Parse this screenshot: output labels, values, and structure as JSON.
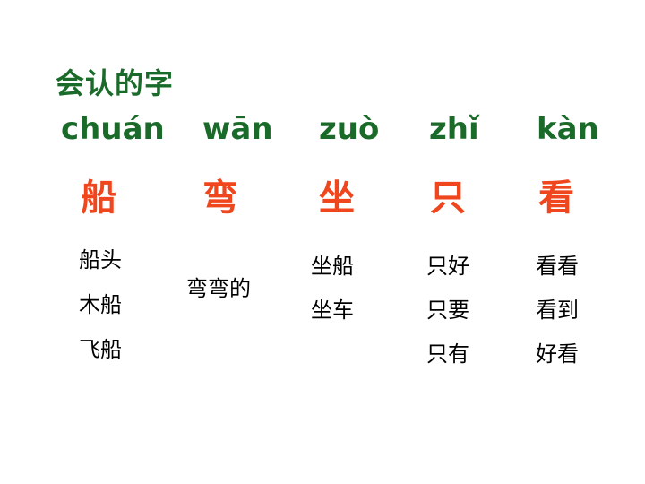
{
  "title": "会认的字",
  "characters": [
    {
      "pinyin": "chuán",
      "hanzi": "船",
      "words": [
        "船头",
        "木船",
        "飞船"
      ]
    },
    {
      "pinyin": "wān",
      "hanzi": "弯",
      "words": [
        "弯弯的"
      ]
    },
    {
      "pinyin": "zuò",
      "hanzi": "坐",
      "words": [
        "坐船",
        "坐车"
      ]
    },
    {
      "pinyin": "zhǐ",
      "hanzi": "只",
      "words": [
        "只好",
        "只要",
        "只有"
      ]
    },
    {
      "pinyin": "kàn",
      "hanzi": "看",
      "words": [
        "看看",
        "看到",
        "好看"
      ]
    }
  ],
  "colors": {
    "pinyin": "#1a6b2a",
    "hanzi": "#f0461e",
    "words": "#000000"
  }
}
